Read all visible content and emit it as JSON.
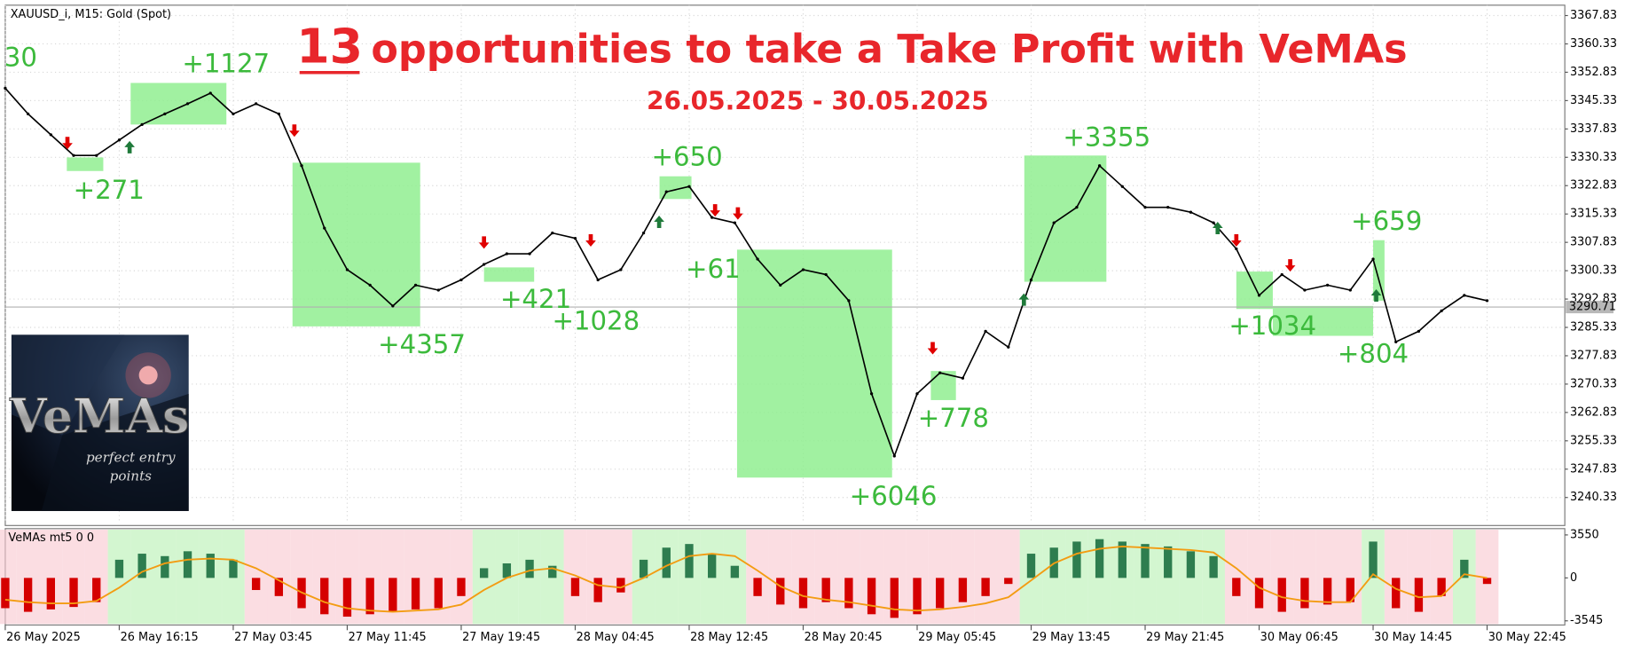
{
  "chart_data": [
    {
      "type": "line",
      "symbol": "XAUUSD_i, M15:  Gold (Spot)",
      "title_number": "13",
      "title": "opportunities to take a Take Profit with VeMAs",
      "subtitle": "26.05.2025 - 30.05.2025",
      "categories": [
        "26 May 2025",
        null,
        null,
        null,
        null,
        "26 May 16:15",
        null,
        null,
        null,
        null,
        "27 May 03:45",
        null,
        null,
        null,
        null,
        "27 May 11:45",
        null,
        null,
        null,
        null,
        "27 May 19:45",
        null,
        null,
        null,
        null,
        "28 May 04:45",
        null,
        null,
        null,
        null,
        "28 May 12:45",
        null,
        null,
        null,
        null,
        "28 May 20:45",
        null,
        null,
        null,
        null,
        "29 May 05:45",
        null,
        null,
        null,
        null,
        "29 May 13:45",
        null,
        null,
        null,
        null,
        "29 May 21:45",
        null,
        null,
        null,
        null,
        "30 May 06:45",
        null,
        null,
        null,
        null,
        "30 May 14:45",
        null,
        null,
        null,
        null,
        "30 May 22:45"
      ],
      "values": [
        3348.6,
        3341.8,
        3336.3,
        3330.8,
        3330.8,
        3334.9,
        3339.0,
        3341.8,
        3344.5,
        3347.3,
        3341.8,
        3344.5,
        3341.8,
        3328.1,
        3311.6,
        3300.6,
        3296.5,
        3291.0,
        3296.5,
        3295.2,
        3297.9,
        3302.0,
        3304.8,
        3304.8,
        3310.3,
        3308.9,
        3297.9,
        3300.6,
        3310.3,
        3321.2,
        3322.6,
        3314.4,
        3313.0,
        3303.4,
        3296.5,
        3300.6,
        3299.3,
        3292.4,
        3267.8,
        3251.3,
        3267.8,
        3273.3,
        3271.9,
        3284.3,
        3280.1,
        3297.9,
        3313.0,
        3317.1,
        3328.1,
        3322.6,
        3317.1,
        3317.1,
        3315.8,
        3313.0,
        3306.1,
        3293.8,
        3299.3,
        3295.2,
        3296.5,
        3295.2,
        3303.4,
        3281.5,
        3284.3,
        3289.7,
        3293.8,
        3292.4
      ],
      "color": "#000000",
      "ylim": [
        3233.47,
        3370.57
      ],
      "yticks": [
        3367.83,
        3360.33,
        3352.83,
        3345.33,
        3337.83,
        3330.33,
        3322.83,
        3315.33,
        3307.83,
        3300.33,
        3292.83,
        3285.33,
        3277.83,
        3270.33,
        3262.83,
        3255.33,
        3247.83,
        3240.33
      ],
      "grid": true,
      "current_price": 3290.71,
      "box_color": "#90ee90",
      "label_color": "#3cba3c",
      "take_profits": [
        {
          "label": "30"
        },
        {
          "label": "+1127",
          "x": [
            5.5,
            9.7
          ],
          "y": [
            3339.0,
            3350.0
          ]
        },
        {
          "label": "+271",
          "x": [
            2.7,
            4.3
          ],
          "y": [
            3326.7,
            3330.3
          ]
        },
        {
          "label": "+4357",
          "x": [
            12.6,
            18.2
          ],
          "y": [
            3285.6,
            3328.9
          ]
        },
        {
          "label": "+421",
          "x": [
            21.0,
            23.2
          ],
          "y": [
            3297.4,
            3301.2
          ]
        },
        {
          "label": "+1028"
        },
        {
          "label": "+650",
          "x": [
            28.7,
            30.1
          ],
          "y": [
            3319.3,
            3325.3
          ]
        },
        {
          "label": "+61"
        },
        {
          "label": "+6046",
          "x": [
            32.1,
            38.9
          ],
          "y": [
            3245.6,
            3305.9
          ]
        },
        {
          "label": "+778",
          "x": [
            40.6,
            41.7
          ],
          "y": [
            3266.1,
            3273.8
          ]
        },
        {
          "label": "+3355",
          "x": [
            44.7,
            48.3
          ],
          "y": [
            3297.4,
            3330.8
          ]
        },
        {
          "label": "+1034",
          "x": [
            54.0,
            55.6
          ],
          "y": [
            3290.2,
            3300.1
          ]
        },
        {
          "label": "+804",
          "x": [
            55.6,
            60.0
          ],
          "y": [
            3283.1,
            3291.0
          ]
        },
        {
          "label": "+659",
          "x": [
            60.0,
            60.5
          ],
          "y": [
            3292.4,
            3308.4
          ]
        }
      ]
    },
    {
      "type": "bar",
      "title": "VeMAs mt5 0 0",
      "values": [
        -2500,
        -2800,
        -2600,
        -2400,
        -2000,
        1500,
        2000,
        1800,
        2200,
        2000,
        1500,
        -1000,
        -1500,
        -2500,
        -3000,
        -3200,
        -3000,
        -2800,
        -2600,
        -2500,
        -1500,
        800,
        1200,
        1500,
        1000,
        -1500,
        -2000,
        -1200,
        1500,
        2500,
        2800,
        2000,
        1000,
        -1500,
        -2200,
        -2500,
        -2000,
        -2500,
        -3000,
        -3300,
        -3000,
        -2500,
        -2000,
        -1500,
        -500,
        2000,
        2500,
        3000,
        3200,
        3000,
        2800,
        2600,
        2200,
        1800,
        -1500,
        -2500,
        -2800,
        -2500,
        -2200,
        -2000,
        3000,
        -2500,
        -2800,
        -1500,
        1500,
        -500
      ],
      "signal": [
        -1800,
        -2000,
        -2100,
        -2100,
        -1900,
        -800,
        500,
        1200,
        1500,
        1600,
        1500,
        800,
        -200,
        -1200,
        -2000,
        -2500,
        -2700,
        -2800,
        -2700,
        -2600,
        -2200,
        -1000,
        0,
        600,
        800,
        200,
        -600,
        -800,
        0,
        1000,
        1800,
        2000,
        1800,
        600,
        -700,
        -1500,
        -1800,
        -2000,
        -2300,
        -2600,
        -2700,
        -2600,
        -2400,
        -2100,
        -1600,
        -200,
        1200,
        2000,
        2400,
        2600,
        2500,
        2400,
        2300,
        2100,
        800,
        -800,
        -1600,
        -1900,
        -2000,
        -2000,
        300,
        -900,
        -1600,
        -1500,
        300,
        0
      ],
      "positive_color": "#2e7d4f",
      "negative_color": "#d50000",
      "signal_color": "#f39c12",
      "ylim": [
        -3890,
        4070
      ],
      "yticks": [
        3550,
        0,
        -3545
      ]
    }
  ],
  "logo": {
    "name": "VeMAs",
    "tagline_1": "perfect entry",
    "tagline_2": "points"
  }
}
